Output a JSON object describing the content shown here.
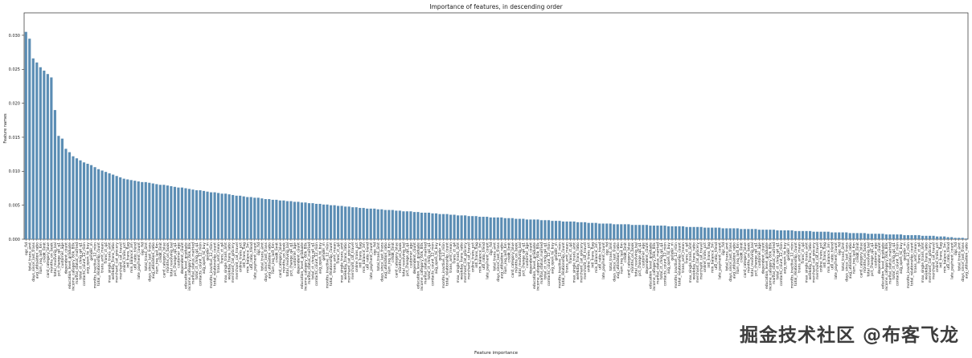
{
  "chart_data": {
    "type": "bar",
    "title": "Importance of features, in descending order",
    "xlabel": "Feature importance",
    "ylabel": "Feature names",
    "ylim": [
      0,
      0.0333
    ],
    "grid": false,
    "legend": "none",
    "bar_color": "#5b8db4",
    "axis_color": "#2b2b2b",
    "y_tick_values": [
      0.0,
      0.005,
      0.01,
      0.015,
      0.02,
      0.025,
      0.03
    ],
    "y_tick_labels": [
      "0.000",
      "0.005",
      "0.010",
      "0.015",
      "0.020",
      "0.025",
      "0.030"
    ],
    "x_labels_legible": false,
    "x_label_samples": [
      "ogc_fid",
      "total_trans_amt",
      "days_since_last_trans",
      "avg_utilisation_ratio",
      "num_inq_last_6m",
      "credit_limit",
      "card_category_blue",
      "months_on_book",
      "total_revolving_bal",
      "pct_change_q4_q1",
      "customer_age",
      "dependent_count",
      "education_level_graduate",
      "income_category_60k_80k",
      "marital_status_married",
      "total_ct_chng_q4_q1",
      "contacts_count_12_mon",
      "avg_open_to_buy",
      "gender_m",
      "months_inactive_12_mon",
      "total_relationship_count",
      "trans_amt_mean",
      "trans_ct_q4",
      "max_single_trans_amt",
      "weekday_trans_ratio",
      "merchant_cat_grocery",
      "merchant_cat_travel",
      "online_trans_pct",
      "intl_trans_flag",
      "min_balance_3m",
      "util_ratio_trend",
      "late_payment_count"
    ],
    "values": [
      0.0305,
      0.0295,
      0.0266,
      0.026,
      0.0253,
      0.0248,
      0.0243,
      0.0238,
      0.019,
      0.0152,
      0.0148,
      0.0133,
      0.0128,
      0.0122,
      0.0119,
      0.0116,
      0.0113,
      0.0111,
      0.0109,
      0.0106,
      0.0103,
      0.0101,
      0.0099,
      0.0097,
      0.0095,
      0.0093,
      0.0091,
      0.0089,
      0.0088,
      0.0087,
      0.0086,
      0.0085,
      0.0084,
      0.0084,
      0.0083,
      0.0082,
      0.0081,
      0.008,
      0.008,
      0.0079,
      0.0078,
      0.0077,
      0.0076,
      0.0076,
      0.0075,
      0.0074,
      0.0073,
      0.0072,
      0.0072,
      0.0071,
      0.007,
      0.0069,
      0.0069,
      0.0068,
      0.0067,
      0.0067,
      0.0066,
      0.0065,
      0.0064,
      0.0064,
      0.0063,
      0.0062,
      0.0062,
      0.0061,
      0.0061,
      0.006,
      0.0059,
      0.0059,
      0.0058,
      0.0058,
      0.0057,
      0.0057,
      0.0056,
      0.0056,
      0.0055,
      0.0055,
      0.0054,
      0.0054,
      0.0053,
      0.0053,
      0.0052,
      0.0052,
      0.0051,
      0.0051,
      0.005,
      0.005,
      0.0049,
      0.0049,
      0.0048,
      0.0048,
      0.0047,
      0.0047,
      0.0046,
      0.0046,
      0.0045,
      0.0045,
      0.0045,
      0.0044,
      0.0044,
      0.0043,
      0.0043,
      0.0043,
      0.0042,
      0.0042,
      0.0041,
      0.0041,
      0.0041,
      0.004,
      0.004,
      0.0039,
      0.0039,
      0.0039,
      0.0038,
      0.0038,
      0.0037,
      0.0037,
      0.0037,
      0.0036,
      0.0036,
      0.0035,
      0.0035,
      0.0035,
      0.0034,
      0.0034,
      0.0034,
      0.0033,
      0.0033,
      0.0033,
      0.0032,
      0.0032,
      0.0032,
      0.0032,
      0.0031,
      0.0031,
      0.0031,
      0.003,
      0.003,
      0.003,
      0.0029,
      0.0029,
      0.0029,
      0.0029,
      0.0028,
      0.0028,
      0.0028,
      0.0027,
      0.0027,
      0.0027,
      0.0026,
      0.0026,
      0.0026,
      0.0026,
      0.0025,
      0.0025,
      0.0025,
      0.0024,
      0.0024,
      0.0024,
      0.0023,
      0.0023,
      0.0023,
      0.0023,
      0.0022,
      0.0022,
      0.0022,
      0.0022,
      0.0022,
      0.0021,
      0.0021,
      0.0021,
      0.0021,
      0.0021,
      0.002,
      0.002,
      0.002,
      0.002,
      0.002,
      0.0019,
      0.0019,
      0.0019,
      0.0019,
      0.0019,
      0.0018,
      0.0018,
      0.0018,
      0.0018,
      0.0018,
      0.0017,
      0.0017,
      0.0017,
      0.0017,
      0.0017,
      0.0016,
      0.0016,
      0.0016,
      0.0016,
      0.0016,
      0.0015,
      0.0015,
      0.0015,
      0.0015,
      0.0015,
      0.0014,
      0.0014,
      0.0014,
      0.0014,
      0.0014,
      0.0013,
      0.0013,
      0.0013,
      0.0013,
      0.0013,
      0.0012,
      0.0012,
      0.0012,
      0.0012,
      0.0012,
      0.0011,
      0.0011,
      0.0011,
      0.0011,
      0.0011,
      0.001,
      0.001,
      0.001,
      0.001,
      0.001,
      0.0009,
      0.0009,
      0.0009,
      0.0009,
      0.0009,
      0.0008,
      0.0008,
      0.0008,
      0.0008,
      0.0008,
      0.0007,
      0.0007,
      0.0007,
      0.0007,
      0.0007,
      0.0006,
      0.0006,
      0.0006,
      0.0006,
      0.0006,
      0.0005,
      0.0005,
      0.0005,
      0.0005,
      0.0004,
      0.0004,
      0.0004,
      0.0003,
      0.0003,
      0.0002,
      0.0002,
      0.0002,
      0.0001
    ]
  },
  "watermark": {
    "text": "掘金技术社区 @布客飞龙",
    "color": "#3d3d3d"
  }
}
